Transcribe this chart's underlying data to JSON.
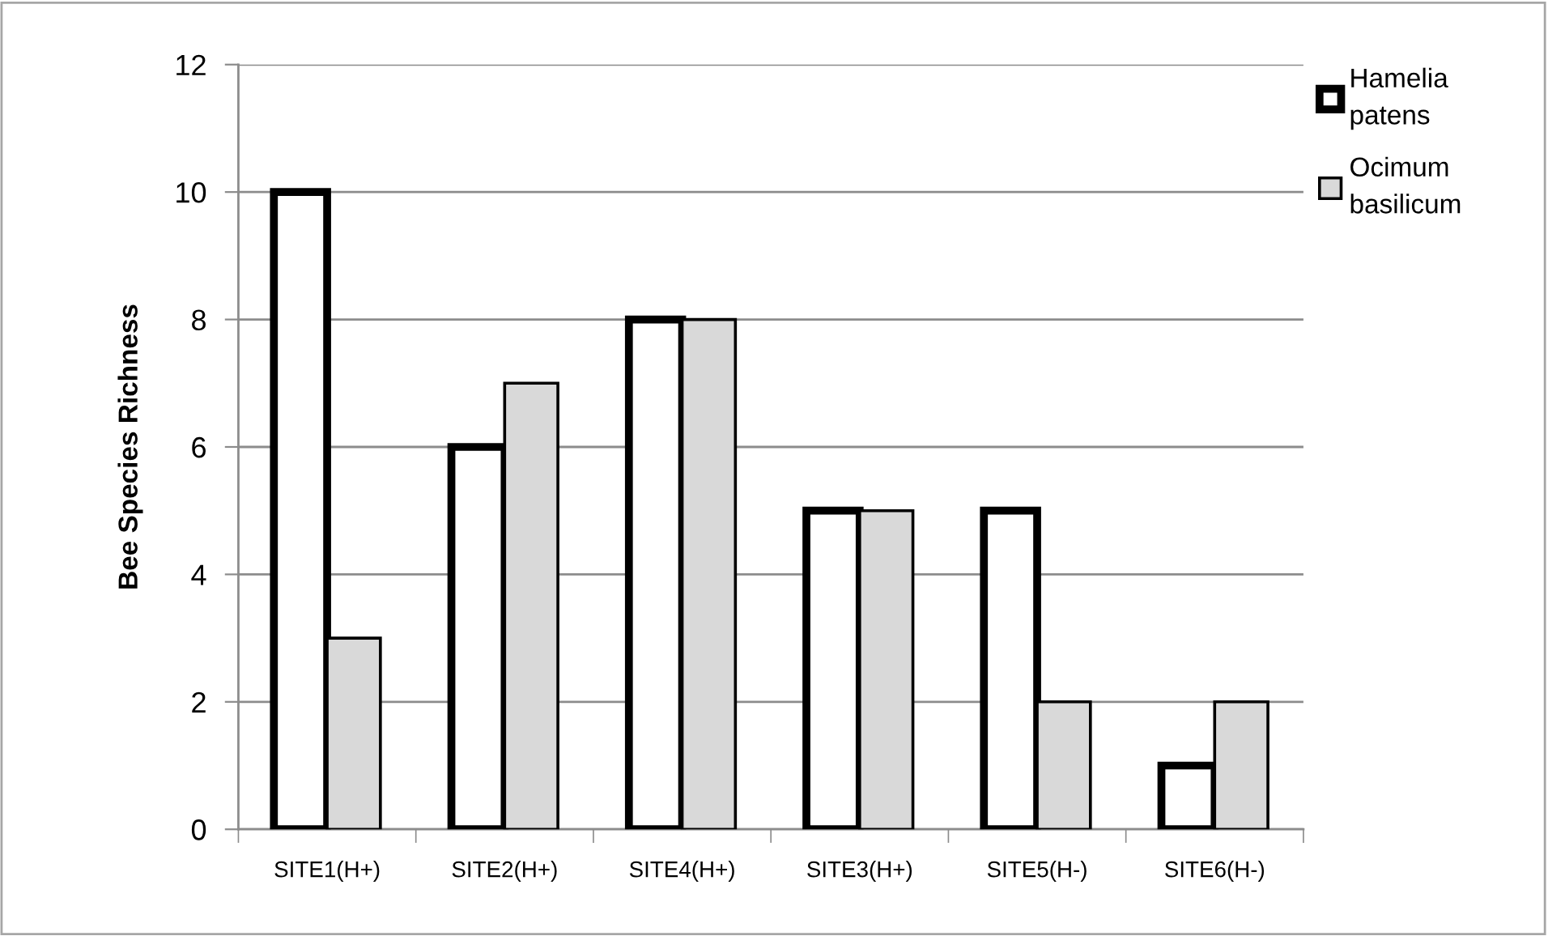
{
  "chart_data": {
    "type": "bar",
    "ylabel": "Bee Species Richness",
    "categories": [
      "SITE1(H+)",
      "SITE2(H+)",
      "SITE4(H+)",
      "SITE3(H+)",
      "SITE5(H-)",
      "SITE6(H-)"
    ],
    "series": [
      {
        "name": "Hamelia patens",
        "color": "#ffffff",
        "values": [
          10,
          6,
          8,
          5,
          5,
          1
        ]
      },
      {
        "name": "Ocimum basilicum",
        "color": "#d9d9d9",
        "values": [
          3,
          7,
          8,
          5,
          2,
          2
        ]
      }
    ],
    "ylim": [
      0,
      12
    ],
    "yticks": [
      0,
      2,
      4,
      6,
      8,
      10,
      12
    ],
    "grid": "y",
    "legend": "top right"
  }
}
